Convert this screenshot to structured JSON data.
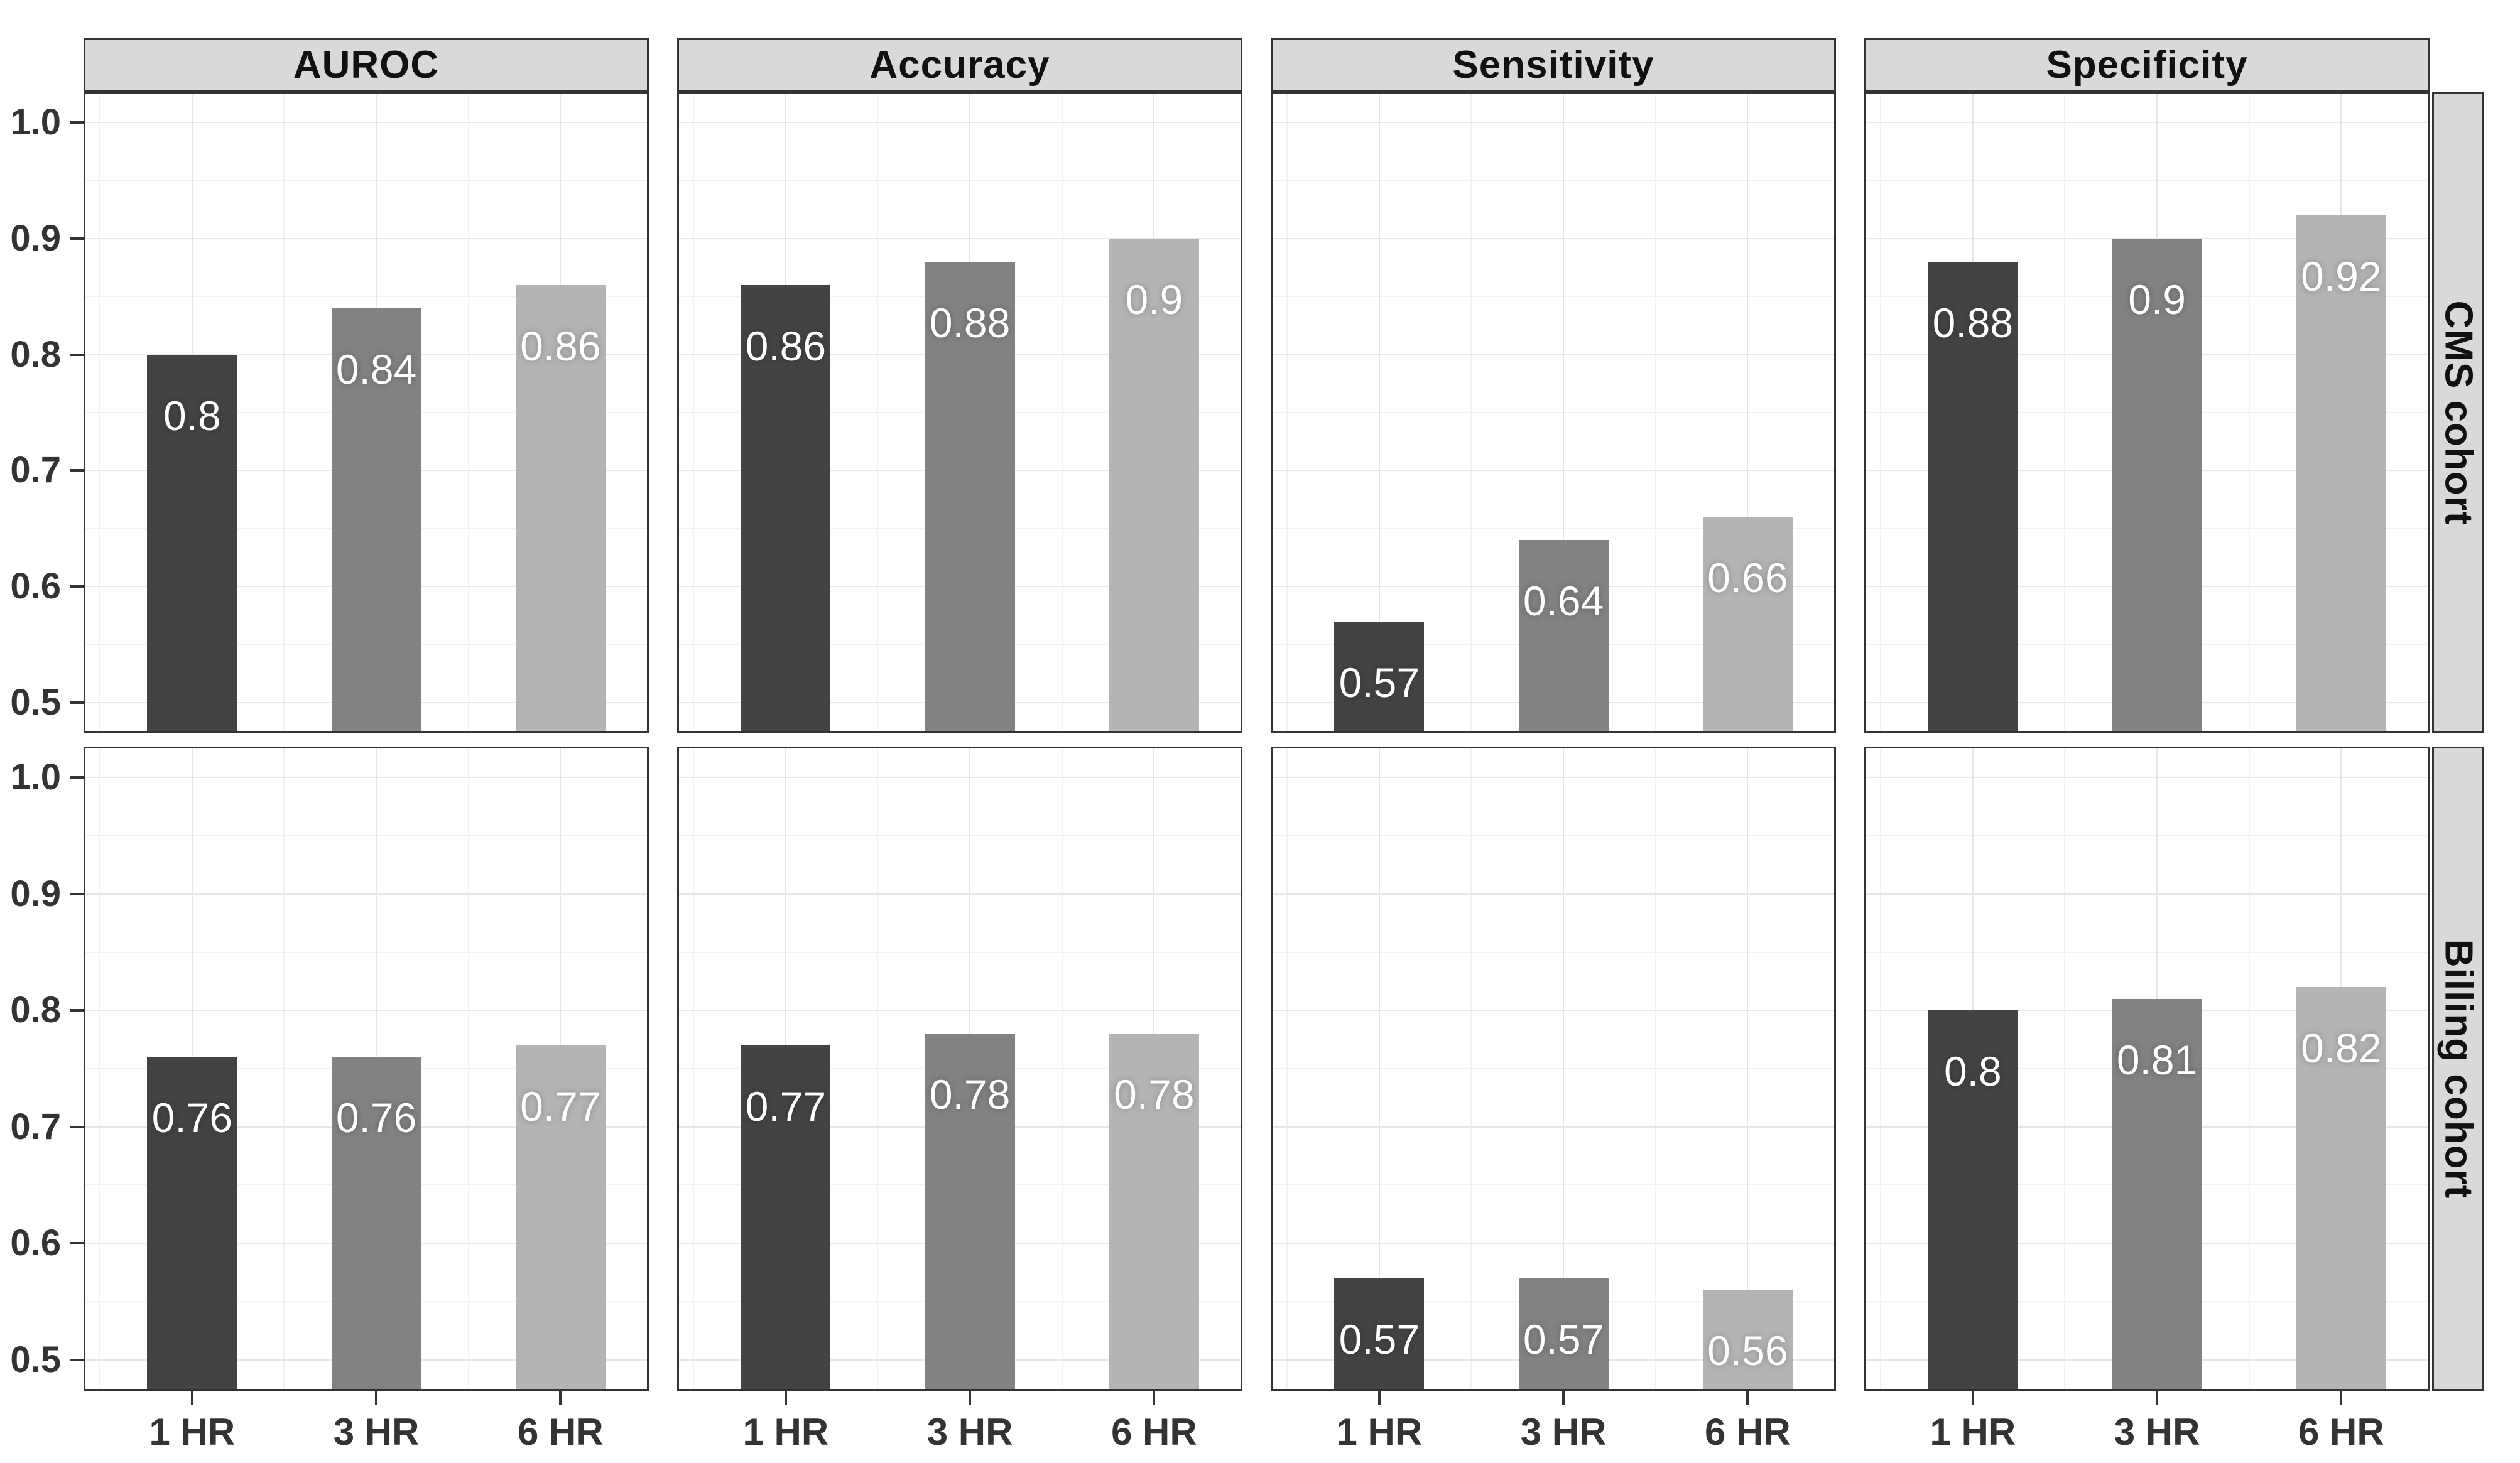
{
  "figure": {
    "background": "#ffffff"
  },
  "axes": {
    "y_tick_labels": [
      "1.0",
      "0.9",
      "0.8",
      "0.7",
      "0.6",
      "0.5"
    ],
    "x_tick_labels": [
      "1 HR",
      "3 HR",
      "6 HR"
    ]
  },
  "colors": {
    "bar_1hr": "#434343",
    "bar_3hr": "#828282",
    "bar_6hr": "#b4b4b4",
    "strip_bg": "#d9d9d9",
    "strip_text": "#111111",
    "panel_border": "#333333",
    "grid_major": "#e6e6e6",
    "grid_minor": "#f2f2f2",
    "tick_text": "#333333",
    "bar_label_text": "#ffffff",
    "background": "#ffffff"
  },
  "chart_data": {
    "type": "bar",
    "categories": [
      "1 HR",
      "3 HR",
      "6 HR"
    ],
    "facet_columns": [
      "AUROC",
      "Accuracy",
      "Sensitivity",
      "Specificity"
    ],
    "facet_rows": [
      "CMS cohort",
      "Billing cohort"
    ],
    "ylim": [
      0.5,
      1.0
    ],
    "y_ticks": [
      1.0,
      0.9,
      0.8,
      0.7,
      0.6,
      0.5
    ],
    "grid": true,
    "legend_position": "none",
    "bar_colors_by_category": {
      "1 HR": "#434343",
      "3 HR": "#828282",
      "6 HR": "#b4b4b4"
    },
    "panels": [
      {
        "row": "CMS cohort",
        "col": "AUROC",
        "values": [
          0.8,
          0.84,
          0.86
        ],
        "labels": [
          "0.8",
          "0.84",
          "0.86"
        ]
      },
      {
        "row": "CMS cohort",
        "col": "Accuracy",
        "values": [
          0.86,
          0.88,
          0.9
        ],
        "labels": [
          "0.86",
          "0.88",
          "0.9"
        ]
      },
      {
        "row": "CMS cohort",
        "col": "Sensitivity",
        "values": [
          0.57,
          0.64,
          0.66
        ],
        "labels": [
          "0.57",
          "0.64",
          "0.66"
        ]
      },
      {
        "row": "CMS cohort",
        "col": "Specificity",
        "values": [
          0.88,
          0.9,
          0.92
        ],
        "labels": [
          "0.88",
          "0.9",
          "0.92"
        ]
      },
      {
        "row": "Billing cohort",
        "col": "AUROC",
        "values": [
          0.76,
          0.76,
          0.77
        ],
        "labels": [
          "0.76",
          "0.76",
          "0.77"
        ]
      },
      {
        "row": "Billing cohort",
        "col": "Accuracy",
        "values": [
          0.77,
          0.78,
          0.78
        ],
        "labels": [
          "0.77",
          "0.78",
          "0.78"
        ]
      },
      {
        "row": "Billing cohort",
        "col": "Sensitivity",
        "values": [
          0.57,
          0.57,
          0.56
        ],
        "labels": [
          "0.57",
          "0.57",
          "0.56"
        ]
      },
      {
        "row": "Billing cohort",
        "col": "Specificity",
        "values": [
          0.8,
          0.81,
          0.82
        ],
        "labels": [
          "0.8",
          "0.81",
          "0.82"
        ]
      }
    ]
  }
}
